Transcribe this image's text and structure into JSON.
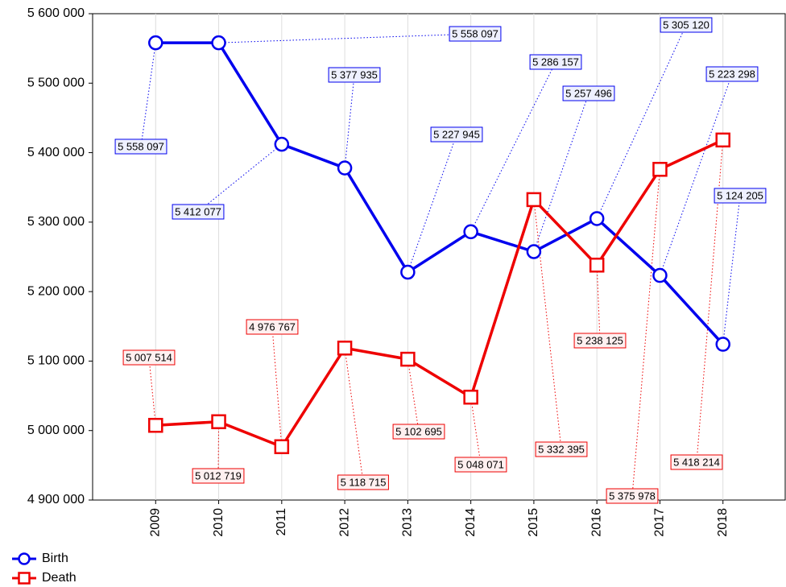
{
  "chart_data": {
    "type": "line",
    "categories": [
      "2009",
      "2010",
      "2011",
      "2012",
      "2013",
      "2014",
      "2015",
      "2016",
      "2017",
      "2018"
    ],
    "series": [
      {
        "name": "Birth",
        "color": "#0000ee",
        "marker": "circle",
        "values": [
          5558097,
          5558097,
          5412077,
          5377935,
          5227945,
          5286157,
          5257496,
          5305120,
          5223298,
          5124205
        ],
        "value_labels": [
          "5 558 097",
          "5 558 097",
          "5 412 077",
          "5 377 935",
          "5 227 945",
          "5 286 157",
          "5 257 496",
          "5 305 120",
          "5 223 298",
          "5 124 205"
        ]
      },
      {
        "name": "Death",
        "color": "#ee0000",
        "marker": "square",
        "values": [
          5007514,
          5012719,
          4976767,
          5118715,
          5102695,
          5048071,
          5332395,
          5238125,
          5375978,
          5418214
        ],
        "value_labels": [
          "5 007 514",
          "5 012 719",
          "4 976 767",
          "5 118 715",
          "5 102 695",
          "5 048 071",
          "5 332 395",
          "5 238 125",
          "5 375 978",
          "5 418 214"
        ]
      }
    ],
    "ylim": [
      4900000,
      5600000
    ],
    "yticks": [
      {
        "value": 4900000,
        "label": "4 900 000"
      },
      {
        "value": 5000000,
        "label": "5 000 000"
      },
      {
        "value": 5100000,
        "label": "5 100 000"
      },
      {
        "value": 5200000,
        "label": "5 200 000"
      },
      {
        "value": 5300000,
        "label": "5 300 000"
      },
      {
        "value": 5400000,
        "label": "5 400 000"
      },
      {
        "value": 5500000,
        "label": "5 500 000"
      },
      {
        "value": 5600000,
        "label": "5 600 000"
      }
    ],
    "legend": "bottom-left",
    "grid": "x"
  }
}
